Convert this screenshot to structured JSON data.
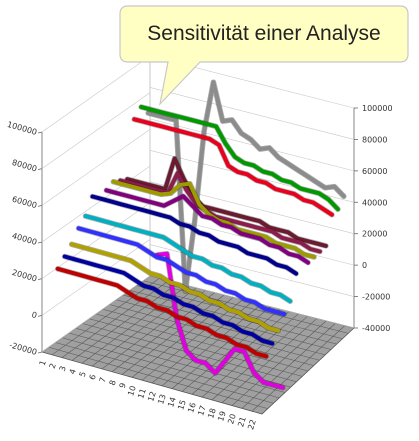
{
  "callout": {
    "text": "Sensitivität einer Analyse"
  },
  "chart_data": {
    "type": "line",
    "title": "Sensitivität einer Analyse",
    "style": "3d-ribbon-lines",
    "left_axis": {
      "ticks": [
        "-20000",
        "0",
        "20000",
        "40000",
        "60000",
        "80000",
        "100000"
      ],
      "min": -20000,
      "max": 100000
    },
    "right_axis": {
      "ticks": [
        "-40000",
        "-20000",
        "0",
        "20000",
        "40000",
        "60000",
        "80000",
        "100000"
      ],
      "min": -40000,
      "max": 100000
    },
    "x": [
      "1",
      "2",
      "3",
      "4",
      "5",
      "6",
      "7",
      "8",
      "9",
      "10",
      "11",
      "12",
      "13",
      "14",
      "15",
      "16",
      "17",
      "18",
      "19",
      "20",
      "21",
      "22"
    ],
    "series": [
      {
        "color": "#8c8c8c",
        "values": [
          72000,
          72000,
          72000,
          72000,
          -20000,
          20000,
          70000,
          98000,
          78000,
          80000,
          74000,
          72000,
          68000,
          70000,
          66000,
          64000,
          62000,
          60000,
          58000,
          56000,
          58000,
          54000
        ]
      },
      {
        "color": "#009a00",
        "values": [
          78000,
          78000,
          78000,
          78000,
          78000,
          78000,
          78000,
          78000,
          78000,
          70000,
          64000,
          62000,
          62000,
          60000,
          60000,
          58000,
          58000,
          56000,
          56000,
          56000,
          54000,
          50000
        ]
      },
      {
        "color": "#e8001c",
        "values": [
          74000,
          74000,
          74000,
          74000,
          74000,
          74000,
          74000,
          74000,
          74000,
          72000,
          62000,
          60000,
          60000,
          58000,
          58000,
          56000,
          56000,
          56000,
          54000,
          54000,
          52000,
          50000
        ]
      },
      {
        "color": "#6b1a30",
        "values": [
          44000,
          44000,
          44000,
          44000,
          44000,
          62000,
          52000,
          44000,
          40000,
          40000,
          40000,
          40000,
          40000,
          40000,
          40000,
          38000,
          38000,
          38000,
          36000,
          36000,
          36000,
          36000
        ]
      },
      {
        "color": "#8c1d4a",
        "values": [
          46000,
          46000,
          46000,
          46000,
          46000,
          46000,
          58000,
          50000,
          44000,
          42000,
          40000,
          40000,
          40000,
          40000,
          40000,
          40000,
          40000,
          38000,
          38000,
          38000,
          36000,
          36000
        ]
      },
      {
        "color": "#9c9c00",
        "values": [
          48000,
          48000,
          48000,
          48000,
          48000,
          48000,
          50000,
          56000,
          58000,
          48000,
          44000,
          42000,
          42000,
          40000,
          40000,
          40000,
          40000,
          38000,
          38000,
          38000,
          36000,
          36000
        ]
      },
      {
        "color": "#800080",
        "values": [
          46000,
          46000,
          46000,
          46000,
          46000,
          46000,
          46000,
          50000,
          54000,
          50000,
          46000,
          46000,
          44000,
          44000,
          42000,
          42000,
          42000,
          40000,
          40000,
          38000,
          38000,
          36000
        ]
      },
      {
        "color": "#e000e0",
        "values": [
          null,
          null,
          null,
          null,
          null,
          null,
          22000,
          24000,
          -10000,
          -26000,
          -30000,
          -30000,
          -34000,
          -26000,
          -18000,
          -18000,
          -28000,
          -32000,
          -32000,
          -32000,
          null,
          null
        ]
      },
      {
        "color": "#00008c",
        "values": [
          48000,
          48000,
          48000,
          48000,
          48000,
          48000,
          48000,
          48000,
          48000,
          46000,
          46000,
          44000,
          44000,
          42000,
          42000,
          42000,
          40000,
          40000,
          40000,
          38000,
          38000,
          36000
        ]
      },
      {
        "color": "#00b0c0",
        "values": [
          40000,
          40000,
          40000,
          40000,
          40000,
          40000,
          40000,
          40000,
          40000,
          38000,
          36000,
          34000,
          34000,
          32000,
          32000,
          30000,
          30000,
          28000,
          28000,
          26000,
          26000,
          24000
        ]
      },
      {
        "color": "#3030ff",
        "values": [
          36000,
          36000,
          36000,
          36000,
          36000,
          36000,
          36000,
          34000,
          32000,
          32000,
          30000,
          28000,
          28000,
          26000,
          26000,
          24000,
          24000,
          22000,
          22000,
          20000,
          20000,
          20000
        ]
      },
      {
        "color": "#b0a000",
        "values": [
          30000,
          30000,
          30000,
          30000,
          30000,
          30000,
          30000,
          28000,
          26000,
          26000,
          24000,
          24000,
          22000,
          22000,
          20000,
          20000,
          18000,
          18000,
          16000,
          16000,
          14000,
          14000
        ]
      },
      {
        "color": "#0000a0",
        "values": [
          26000,
          26000,
          26000,
          26000,
          26000,
          26000,
          26000,
          24000,
          22000,
          22000,
          20000,
          20000,
          18000,
          18000,
          16000,
          16000,
          14000,
          14000,
          12000,
          12000,
          10000,
          10000
        ]
      },
      {
        "color": "#c00000",
        "values": [
          22000,
          22000,
          22000,
          22000,
          22000,
          22000,
          22000,
          20000,
          18000,
          18000,
          16000,
          16000,
          14000,
          14000,
          12000,
          12000,
          10000,
          10000,
          8000,
          8000,
          6000,
          6000
        ]
      }
    ],
    "grid": true,
    "legend": "none"
  }
}
